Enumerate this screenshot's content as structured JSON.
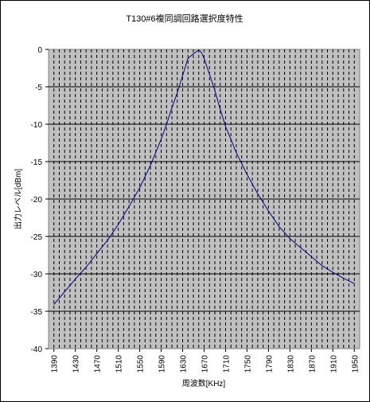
{
  "chart_data": {
    "type": "line",
    "title": "T130#6複同調回路選択度特性",
    "xlabel": "周波数[KHz]",
    "ylabel": "出力レベル[dBm]",
    "x_tick_labels": [
      "1390",
      "1430",
      "1470",
      "1510",
      "1550",
      "1590",
      "1630",
      "1670",
      "1710",
      "1750",
      "1790",
      "1830",
      "1870",
      "1910",
      "1950"
    ],
    "y_tick_labels": [
      "0",
      "-5",
      "-10",
      "-15",
      "-20",
      "-25",
      "-30",
      "-35",
      "-40"
    ],
    "xlim": [
      1380,
      1960
    ],
    "ylim": [
      -40,
      0
    ],
    "grid": true,
    "plot_background": "#c0c0c0",
    "line_color": "#000080",
    "series": [
      {
        "x": [
          1390,
          1410,
          1430,
          1450,
          1470,
          1490,
          1510,
          1530,
          1550,
          1570,
          1590,
          1600,
          1610,
          1620,
          1630,
          1640,
          1650,
          1660,
          1665,
          1670,
          1680,
          1690,
          1700,
          1710,
          1730,
          1750,
          1770,
          1790,
          1810,
          1830,
          1850,
          1870,
          1890,
          1910,
          1930,
          1950
        ],
        "values": [
          -34.1,
          -32.4,
          -30.7,
          -29.1,
          -27.3,
          -25.5,
          -23.4,
          -21.0,
          -18.5,
          -15.5,
          -12.0,
          -10.0,
          -7.8,
          -5.8,
          -3.5,
          -1.2,
          -0.6,
          -0.1,
          -0.4,
          -1.2,
          -3.3,
          -5.5,
          -8.0,
          -10.3,
          -13.8,
          -16.7,
          -19.3,
          -21.6,
          -23.7,
          -25.3,
          -26.5,
          -27.7,
          -28.9,
          -29.8,
          -30.6,
          -31.3
        ]
      }
    ]
  }
}
